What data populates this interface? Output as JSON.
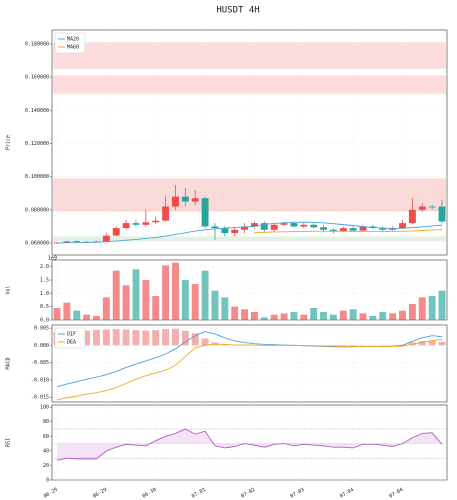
{
  "title": "HUSDT  4H",
  "chart_data": [
    {
      "type": "candlestick",
      "ylabel": "Price",
      "grid": true,
      "legend": "upper left",
      "up_color": "#ef4c4c",
      "down_color": "#26a69a",
      "ylim": [
        0.0528,
        0.1884
      ],
      "yticks": [
        {
          "value": 0.06,
          "label": "0.060000"
        },
        {
          "value": 0.08,
          "label": "0.080000"
        },
        {
          "value": 0.1,
          "label": "0.100000"
        },
        {
          "value": 0.12,
          "label": "0.120000"
        },
        {
          "value": 0.14,
          "label": "0.140000"
        },
        {
          "value": 0.16,
          "label": "0.160000"
        },
        {
          "value": 0.18,
          "label": "0.180000"
        }
      ],
      "zones": [
        {
          "from": 0.165,
          "to": 0.181,
          "color": "#fbd3d3"
        },
        {
          "from": 0.15,
          "to": 0.161,
          "color": "#fbd3d3"
        },
        {
          "from": 0.079,
          "to": 0.099,
          "color": "#f9cfcf"
        },
        {
          "from": 0.061,
          "to": 0.064,
          "color": "#dcefdc"
        }
      ],
      "open": [
        0.06,
        0.0603,
        0.0612,
        0.0607,
        0.0608,
        0.061,
        0.0645,
        0.069,
        0.072,
        0.071,
        0.0725,
        0.0735,
        0.082,
        0.088,
        0.085,
        0.087,
        0.07,
        0.069,
        0.066,
        0.068,
        0.07,
        0.072,
        0.068,
        0.071,
        0.072,
        0.07,
        0.071,
        0.0695,
        0.068,
        0.067,
        0.069,
        0.0675,
        0.07,
        0.069,
        0.068,
        0.069,
        0.072,
        0.08,
        0.082,
        0.082
      ],
      "high": [
        0.0606,
        0.0612,
        0.0615,
        0.0612,
        0.0614,
        0.066,
        0.07,
        0.074,
        0.074,
        0.08,
        0.076,
        0.088,
        0.095,
        0.093,
        0.092,
        0.088,
        0.072,
        0.07,
        0.069,
        0.072,
        0.073,
        0.073,
        0.072,
        0.073,
        0.073,
        0.072,
        0.072,
        0.071,
        0.069,
        0.07,
        0.07,
        0.071,
        0.071,
        0.07,
        0.07,
        0.074,
        0.087,
        0.084,
        0.083,
        0.086
      ],
      "low": [
        0.0596,
        0.06,
        0.0605,
        0.0603,
        0.0604,
        0.0605,
        0.064,
        0.068,
        0.07,
        0.07,
        0.0715,
        0.073,
        0.08,
        0.082,
        0.083,
        0.069,
        0.062,
        0.064,
        0.064,
        0.066,
        0.069,
        0.066,
        0.067,
        0.07,
        0.0695,
        0.069,
        0.069,
        0.067,
        0.066,
        0.0665,
        0.067,
        0.067,
        0.0685,
        0.067,
        0.0675,
        0.0685,
        0.071,
        0.079,
        0.08,
        0.072
      ],
      "close": [
        0.0603,
        0.061,
        0.0607,
        0.0608,
        0.061,
        0.0645,
        0.069,
        0.072,
        0.071,
        0.0725,
        0.0735,
        0.082,
        0.088,
        0.085,
        0.087,
        0.07,
        0.069,
        0.066,
        0.068,
        0.07,
        0.072,
        0.068,
        0.071,
        0.072,
        0.07,
        0.071,
        0.0695,
        0.068,
        0.067,
        0.069,
        0.0675,
        0.07,
        0.069,
        0.068,
        0.069,
        0.072,
        0.08,
        0.082,
        0.0815,
        0.073
      ],
      "series": [
        {
          "name": "MA20",
          "color": "#4aa3e0",
          "values": [
            0.06,
            0.0602,
            0.0603,
            0.0604,
            0.0605,
            0.0608,
            0.0612,
            0.0617,
            0.0622,
            0.0628,
            0.0634,
            0.0642,
            0.0652,
            0.0662,
            0.0672,
            0.068,
            0.0686,
            0.069,
            0.0694,
            0.0697,
            0.07,
            0.0712,
            0.0718,
            0.0722,
            0.0725,
            0.0726,
            0.0725,
            0.0722,
            0.0717,
            0.0711,
            0.0705,
            0.0699,
            0.0694,
            0.069,
            0.0688,
            0.0689,
            0.0693,
            0.0698,
            0.0703,
            0.0708
          ]
        },
        {
          "name": "MA60",
          "color": "#f5a623",
          "values": [
            null,
            null,
            null,
            null,
            null,
            null,
            null,
            null,
            null,
            null,
            null,
            null,
            null,
            null,
            null,
            null,
            null,
            null,
            null,
            null,
            0.0663,
            0.0665,
            0.0667,
            0.0668,
            0.0669,
            0.067,
            0.0671,
            0.0671,
            0.0671,
            0.0671,
            0.067,
            0.067,
            0.067,
            0.067,
            0.067,
            0.0671,
            0.0673,
            0.0676,
            0.0679,
            0.0681
          ]
        }
      ]
    },
    {
      "type": "bar",
      "ylabel": "Vol",
      "scale_label": "1e9",
      "grid": true,
      "ylim": [
        0,
        2.25
      ],
      "yticks": [
        {
          "value": 0,
          "label": "0.0"
        },
        {
          "value": 0.5,
          "label": "0.5"
        },
        {
          "value": 1,
          "label": "1.0"
        },
        {
          "value": 1.5,
          "label": "1.5"
        },
        {
          "value": 2,
          "label": "2.0"
        }
      ],
      "values": [
        0.45,
        0.65,
        0.35,
        0.2,
        0.15,
        0.85,
        1.85,
        1.3,
        1.9,
        1.5,
        0.9,
        2.05,
        2.15,
        1.5,
        1.35,
        1.85,
        1.1,
        0.85,
        0.5,
        0.4,
        0.3,
        0.1,
        0.2,
        0.25,
        0.3,
        0.2,
        0.45,
        0.3,
        0.2,
        0.35,
        0.4,
        0.25,
        0.15,
        0.3,
        0.25,
        0.35,
        0.6,
        0.85,
        0.9,
        1.1
      ]
    },
    {
      "type": "macd",
      "ylabel": "MACD",
      "grid": true,
      "legend": "upper left",
      "ylim": [
        -0.0164,
        0.0059
      ],
      "hist_color": "#f19a9a",
      "yticks": [
        {
          "value": -0.015,
          "label": "-0.015"
        },
        {
          "value": -0.01,
          "label": "-0.010"
        },
        {
          "value": -0.005,
          "label": "-0.005"
        },
        {
          "value": 0,
          "label": "0.000"
        },
        {
          "value": 0.005,
          "label": "0.005"
        }
      ],
      "hist": [
        0.0038,
        0.004,
        0.0042,
        0.0043,
        0.0045,
        0.0046,
        0.0047,
        0.0046,
        0.0044,
        0.0043,
        0.0044,
        0.0047,
        0.0048,
        0.0042,
        0.0035,
        0.002,
        0.0008,
        0.0003,
        0.0002,
        0.0002,
        0.0001,
        0.0001,
        0.0001,
        0,
        -0.0001,
        -0.0001,
        -0.0002,
        -0.0002,
        -0.0002,
        -0.0002,
        -0.0002,
        -0.0001,
        -0.0001,
        -0.0001,
        0,
        0.0002,
        0.0009,
        0.0013,
        0.0014,
        0.001
      ],
      "series": [
        {
          "name": "DIF",
          "color": "#4aa3e0",
          "values": [
            -0.012,
            -0.0112,
            -0.0105,
            -0.0098,
            -0.0092,
            -0.0085,
            -0.0075,
            -0.0064,
            -0.0054,
            -0.0045,
            -0.0036,
            -0.0025,
            -0.001,
            0.001,
            0.0028,
            0.004,
            0.0033,
            0.0022,
            0.0013,
            0.0008,
            0.0005,
            0.0003,
            0.0002,
            0.0001,
            0,
            -0.0001,
            -0.0002,
            -0.0003,
            -0.0004,
            -0.0004,
            -0.0004,
            -0.0003,
            -0.0003,
            -0.0003,
            -0.0002,
            0,
            0.0012,
            0.0022,
            0.0028,
            0.0025
          ]
        },
        {
          "name": "DEA",
          "color": "#f5a623",
          "values": [
            -0.0158,
            -0.0152,
            -0.0147,
            -0.0141,
            -0.0137,
            -0.0131,
            -0.0122,
            -0.011,
            -0.0098,
            -0.0088,
            -0.008,
            -0.0072,
            -0.0058,
            -0.0032,
            -0.0007,
            0,
            0.0004,
            0.0003,
            0.0001,
            0.0001,
            0.0001,
            0,
            0,
            0,
            0,
            -0.0001,
            -0.0001,
            -0.0002,
            -0.0002,
            -0.0003,
            -0.0003,
            -0.0003,
            -0.0003,
            -0.0003,
            -0.0003,
            -0.0002,
            0.0003,
            0.0009,
            0.0014,
            0.0017
          ]
        }
      ]
    },
    {
      "type": "rsi",
      "ylabel": "RSI",
      "grid": true,
      "ylim": [
        0,
        103
      ],
      "yticks": [
        0,
        20,
        40,
        60,
        80,
        100
      ],
      "levels": [
        30,
        70
      ],
      "mid": 50,
      "color": "#b05cc0",
      "fill": "#f1dcf1",
      "categories": [
        "06-29",
        null,
        null,
        null,
        null,
        "06-29",
        null,
        null,
        null,
        null,
        "06-30",
        null,
        null,
        null,
        null,
        "07-01",
        null,
        null,
        null,
        null,
        "07-02",
        null,
        null,
        null,
        null,
        "07-03",
        null,
        null,
        null,
        null,
        "07-04",
        null,
        null,
        null,
        null,
        "07-04",
        null,
        null,
        null,
        null
      ],
      "values": [
        27,
        30,
        29,
        29,
        29,
        40,
        45,
        49,
        48,
        47,
        54,
        60,
        64,
        70,
        63,
        67,
        47,
        44,
        46,
        50,
        48,
        45,
        49,
        50,
        47,
        49,
        48,
        47,
        45,
        45,
        44,
        49,
        49,
        48,
        46,
        50,
        58,
        64,
        65,
        49
      ]
    }
  ]
}
